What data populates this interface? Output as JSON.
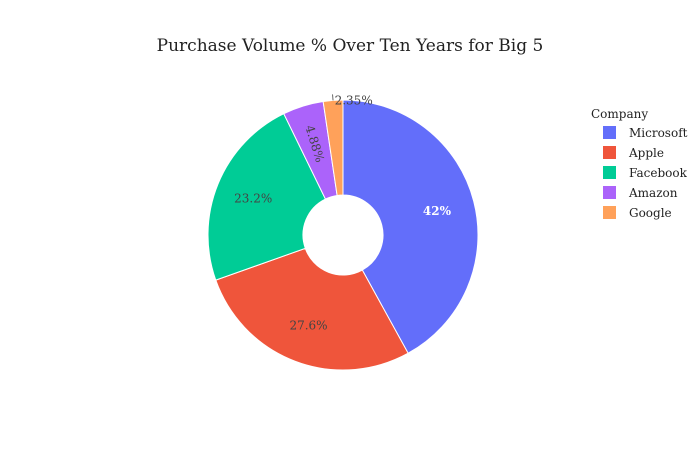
{
  "chart_data": {
    "type": "pie",
    "title": "Purchase Volume % Over Ten Years for Big 5",
    "hole": true,
    "legend": {
      "title": "Company",
      "placement": "right"
    },
    "slices": [
      {
        "name": "Microsoft",
        "value": 42.0,
        "label": "42%",
        "color": "#636efa"
      },
      {
        "name": "Apple",
        "value": 27.6,
        "label": "27.6%",
        "color": "#ef553b"
      },
      {
        "name": "Facebook",
        "value": 23.2,
        "label": "23.2%",
        "color": "#00cc96"
      },
      {
        "name": "Amazon",
        "value": 4.88,
        "label": "4.88%",
        "color": "#ab63fa"
      },
      {
        "name": "Google",
        "value": 2.35,
        "label": "2.35%",
        "color": "#ffa15a"
      }
    ]
  }
}
